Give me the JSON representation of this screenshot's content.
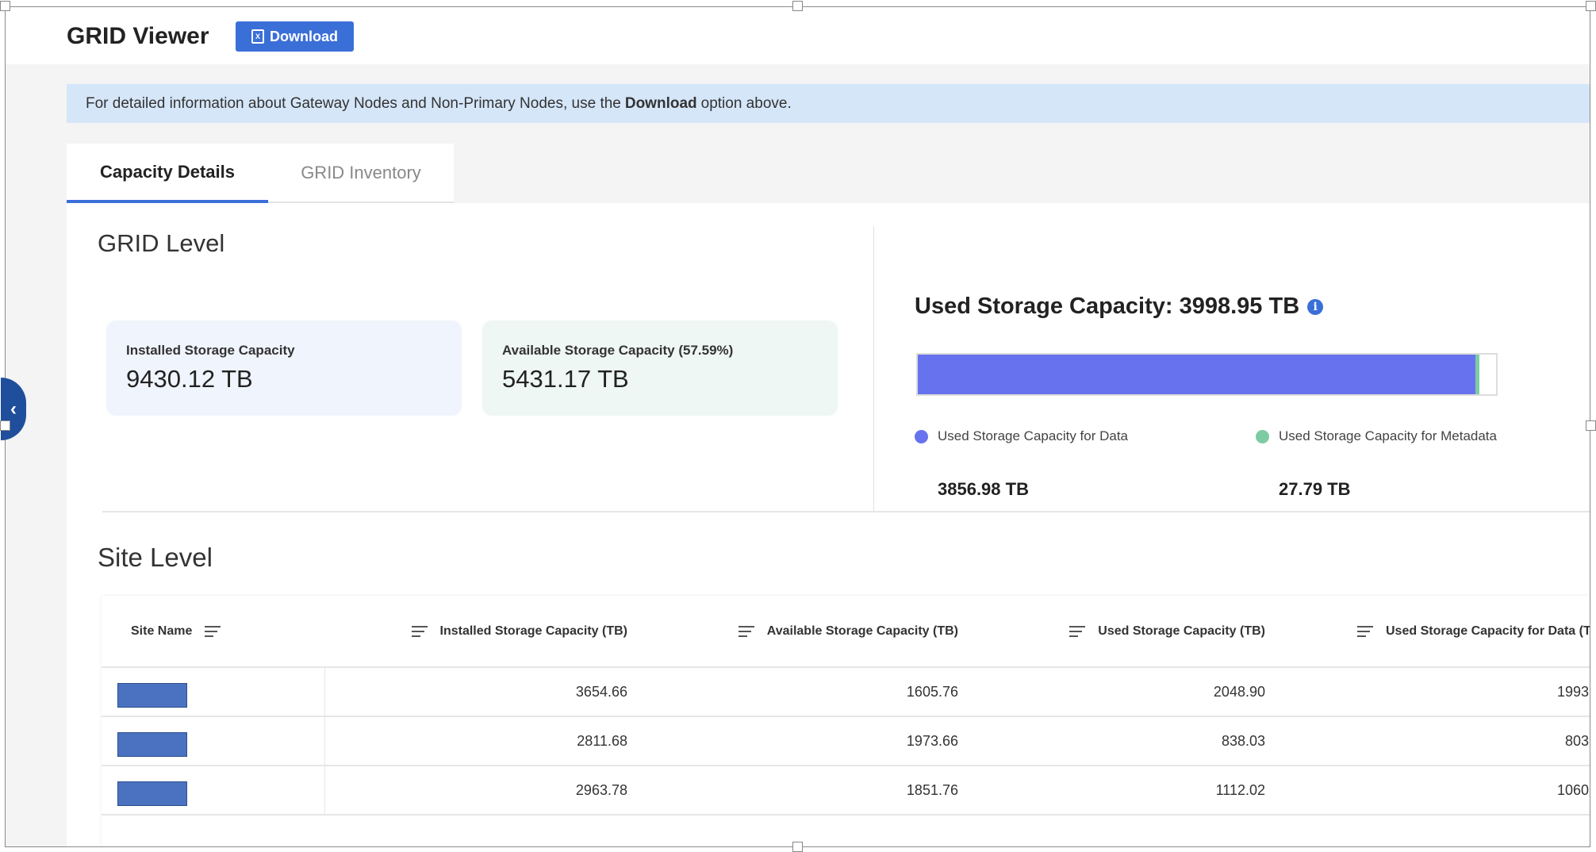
{
  "header": {
    "title": "GRID Viewer",
    "download_label": "Download",
    "download_icon": "excel-file-icon"
  },
  "banner": {
    "text_before": "For detailed information about Gateway Nodes and Non-Primary Nodes, use the",
    "text_bold": "Download",
    "text_after": "option above."
  },
  "tabs": [
    {
      "label": "Capacity Details",
      "active": true
    },
    {
      "label": "GRID Inventory",
      "active": false
    }
  ],
  "grid_level": {
    "heading": "GRID Level",
    "installed": {
      "label": "Installed Storage Capacity",
      "value": "9430.12 TB"
    },
    "available": {
      "label": "Available Storage Capacity (57.59%)",
      "value": "5431.17 TB"
    },
    "used": {
      "title": "Used Storage Capacity: 3998.95 TB",
      "total_tb": 3998.95,
      "data": {
        "label": "Used Storage Capacity for Data",
        "value": "3856.98 TB",
        "tb": 3856.98,
        "color": "#6773ee"
      },
      "metadata": {
        "label": "Used Storage Capacity for Metadata",
        "value": "27.79 TB",
        "tb": 27.79,
        "color": "#7dcba2"
      }
    }
  },
  "site_level": {
    "heading": "Site Level",
    "columns": [
      "Site Name",
      "Installed Storage Capacity (TB)",
      "Available Storage Capacity (TB)",
      "Used Storage Capacity (TB)",
      "Used Storage Capacity for Data (TB)"
    ],
    "rows": [
      {
        "installed": "3654.66",
        "available": "1605.76",
        "used": "2048.90",
        "used_data": "1993"
      },
      {
        "installed": "2811.68",
        "available": "1973.66",
        "used": "838.03",
        "used_data": "803"
      },
      {
        "installed": "2963.78",
        "available": "1851.76",
        "used": "1112.02",
        "used_data": "1060"
      }
    ]
  },
  "colors": {
    "accent": "#3b6fd8",
    "banner": "#d5e6f9",
    "installed_card": "#f0f4fc",
    "available_card": "#eef7f3",
    "redaction": "#4a72c0"
  }
}
